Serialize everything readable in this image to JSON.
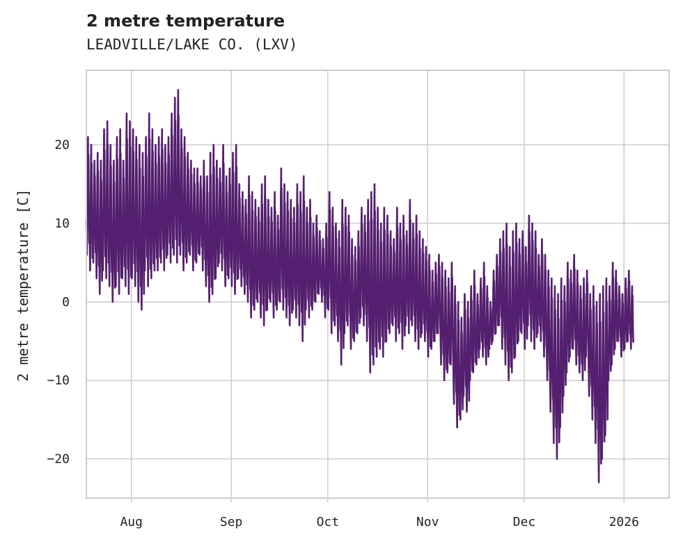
{
  "chart_data": {
    "type": "line",
    "title": "2 metre temperature",
    "subtitle": "LEADVILLE/LAKE CO. (LXV)",
    "xlabel": "",
    "ylabel": "2 metre temperature [C]",
    "ylim": [
      -25,
      29.5
    ],
    "yticks": [
      20,
      10,
      0,
      -10,
      -20
    ],
    "ytick_labels": [
      "20",
      "10",
      "0",
      "−10",
      "−20"
    ],
    "xlim": [
      "2025-07-18",
      "2026-01-15"
    ],
    "xticks": [
      "2025-08-01",
      "2025-09-01",
      "2025-10-01",
      "2025-11-01",
      "2025-12-01",
      "2026-01-01"
    ],
    "xtick_labels": [
      "Aug",
      "Sep",
      "Oct",
      "Nov",
      "Dec",
      "2026"
    ],
    "grid": true,
    "line_color": "#541f6e",
    "series": [
      {
        "name": "2 metre temperature",
        "sampling": "~hourly, values summarized as daily [min, max] in °C",
        "start_date": "2025-07-18",
        "daily_min_max": [
          [
            6,
            21
          ],
          [
            4,
            20
          ],
          [
            5,
            18
          ],
          [
            3,
            19
          ],
          [
            1,
            18
          ],
          [
            4,
            22
          ],
          [
            3,
            23
          ],
          [
            2,
            20
          ],
          [
            0,
            18
          ],
          [
            2,
            21
          ],
          [
            1,
            22
          ],
          [
            3,
            18
          ],
          [
            2,
            24
          ],
          [
            1,
            23
          ],
          [
            3,
            22
          ],
          [
            2,
            21
          ],
          [
            0,
            20
          ],
          [
            -1,
            19
          ],
          [
            4,
            21
          ],
          [
            2,
            24
          ],
          [
            3,
            22
          ],
          [
            4,
            20
          ],
          [
            4,
            21
          ],
          [
            5,
            22
          ],
          [
            4,
            20
          ],
          [
            6,
            21
          ],
          [
            5,
            24
          ],
          [
            6,
            26
          ],
          [
            5,
            27
          ],
          [
            6,
            22
          ],
          [
            4,
            21
          ],
          [
            5,
            19
          ],
          [
            6,
            18
          ],
          [
            4,
            17
          ],
          [
            5,
            17
          ],
          [
            6,
            16
          ],
          [
            4,
            18
          ],
          [
            2,
            16
          ],
          [
            0,
            19
          ],
          [
            1,
            20
          ],
          [
            3,
            18
          ],
          [
            5,
            17
          ],
          [
            4,
            20
          ],
          [
            2,
            16
          ],
          [
            3,
            17
          ],
          [
            2,
            19
          ],
          [
            1,
            20
          ],
          [
            3,
            15
          ],
          [
            2,
            14
          ],
          [
            1,
            13
          ],
          [
            0,
            16
          ],
          [
            -2,
            14
          ],
          [
            -1,
            13
          ],
          [
            0,
            12
          ],
          [
            -2,
            15
          ],
          [
            -3,
            16
          ],
          [
            -1,
            13
          ],
          [
            0,
            12
          ],
          [
            -2,
            14
          ],
          [
            -1,
            11
          ],
          [
            0,
            17
          ],
          [
            -1,
            15
          ],
          [
            -2,
            14
          ],
          [
            -3,
            13
          ],
          [
            -1,
            12
          ],
          [
            -2,
            15
          ],
          [
            -3,
            14
          ],
          [
            -5,
            16
          ],
          [
            -1,
            12
          ],
          [
            -2,
            13
          ],
          [
            -1,
            10
          ],
          [
            0,
            11
          ],
          [
            1,
            9
          ],
          [
            0,
            8
          ],
          [
            -2,
            10
          ],
          [
            -1,
            14
          ],
          [
            -4,
            12
          ],
          [
            -3,
            10
          ],
          [
            -5,
            9
          ],
          [
            -8,
            13
          ],
          [
            -4,
            12
          ],
          [
            -3,
            11
          ],
          [
            -6,
            8
          ],
          [
            -5,
            7
          ],
          [
            -4,
            9
          ],
          [
            -2,
            12
          ],
          [
            -3,
            11
          ],
          [
            -5,
            13
          ],
          [
            -9,
            14
          ],
          [
            -8,
            15
          ],
          [
            -7,
            12
          ],
          [
            -6,
            10
          ],
          [
            -7,
            12
          ],
          [
            -5,
            11
          ],
          [
            -4,
            9
          ],
          [
            -3,
            8
          ],
          [
            -5,
            12
          ],
          [
            -4,
            10
          ],
          [
            -6,
            11
          ],
          [
            -3,
            9
          ],
          [
            -4,
            13
          ],
          [
            -3,
            10
          ],
          [
            -5,
            11
          ],
          [
            -6,
            9
          ],
          [
            -4,
            8
          ],
          [
            -5,
            7
          ],
          [
            -7,
            6
          ],
          [
            -6,
            4
          ],
          [
            -5,
            5
          ],
          [
            -4,
            6
          ],
          [
            -8,
            5
          ],
          [
            -10,
            4
          ],
          [
            -9,
            3
          ],
          [
            -8,
            5
          ],
          [
            -13,
            2
          ],
          [
            -16,
            0
          ],
          [
            -15,
            -2
          ],
          [
            -12,
            1
          ],
          [
            -14,
            0
          ],
          [
            -10,
            2
          ],
          [
            -9,
            4
          ],
          [
            -8,
            1
          ],
          [
            -6,
            3
          ],
          [
            -7,
            5
          ],
          [
            -8,
            2
          ],
          [
            -6,
            0
          ],
          [
            -5,
            4
          ],
          [
            -4,
            6
          ],
          [
            -3,
            8
          ],
          [
            -6,
            9
          ],
          [
            -8,
            10
          ],
          [
            -10,
            7
          ],
          [
            -9,
            9
          ],
          [
            -7,
            10
          ],
          [
            -5,
            8
          ],
          [
            -4,
            9
          ],
          [
            -6,
            7
          ],
          [
            -3,
            11
          ],
          [
            -5,
            10
          ],
          [
            -6,
            9
          ],
          [
            -4,
            6
          ],
          [
            -5,
            8
          ],
          [
            -7,
            6
          ],
          [
            -10,
            4
          ],
          [
            -14,
            3
          ],
          [
            -18,
            2
          ],
          [
            -20,
            1
          ],
          [
            -16,
            3
          ],
          [
            -12,
            2
          ],
          [
            -9,
            5
          ],
          [
            -7,
            4
          ],
          [
            -6,
            6
          ],
          [
            -8,
            4
          ],
          [
            -9,
            2
          ],
          [
            -10,
            3
          ],
          [
            -7,
            4
          ],
          [
            -12,
            1
          ],
          [
            -15,
            2
          ],
          [
            -18,
            0
          ],
          [
            -23,
            1
          ],
          [
            -20,
            2
          ],
          [
            -17,
            3
          ],
          [
            -10,
            2
          ],
          [
            -8,
            5
          ],
          [
            -6,
            4
          ],
          [
            -5,
            2
          ],
          [
            -7,
            1
          ],
          [
            -6,
            3
          ],
          [
            -5,
            4
          ],
          [
            -6,
            2
          ]
        ]
      }
    ]
  }
}
